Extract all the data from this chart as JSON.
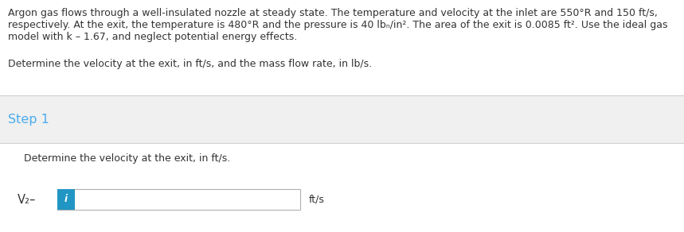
{
  "white_bg": "#ffffff",
  "gray_bg": "#f0f0f0",
  "para_line1": "Argon gas flows through a well-insulated nozzle at steady state. The temperature and velocity at the inlet are 550°R and 150 ft/s,",
  "para_line2": "respectively. At the exit, the temperature is 480°R and the pressure is 40 lbₙ/in². The area of the exit is 0.0085 ft². Use the ideal gas",
  "para_line3": "model with k – 1.67, and neglect potential energy effects.",
  "question_text": "Determine the velocity at the exit, in ft/s, and the mass flow rate, in lb/s.",
  "step_label": "Step 1",
  "step_subtext": "Determine the velocity at the exit, in ft/s.",
  "v2_label": "V₂–",
  "unit_label": "ft/s",
  "step_color": "#4aaced",
  "input_box_blue": "#2196c4",
  "text_color": "#333333",
  "separator_color": "#d0d0d0",
  "font_size_para": 9.0,
  "font_size_step": 11.5,
  "font_size_sub": 9.0,
  "font_size_v2": 10.5
}
